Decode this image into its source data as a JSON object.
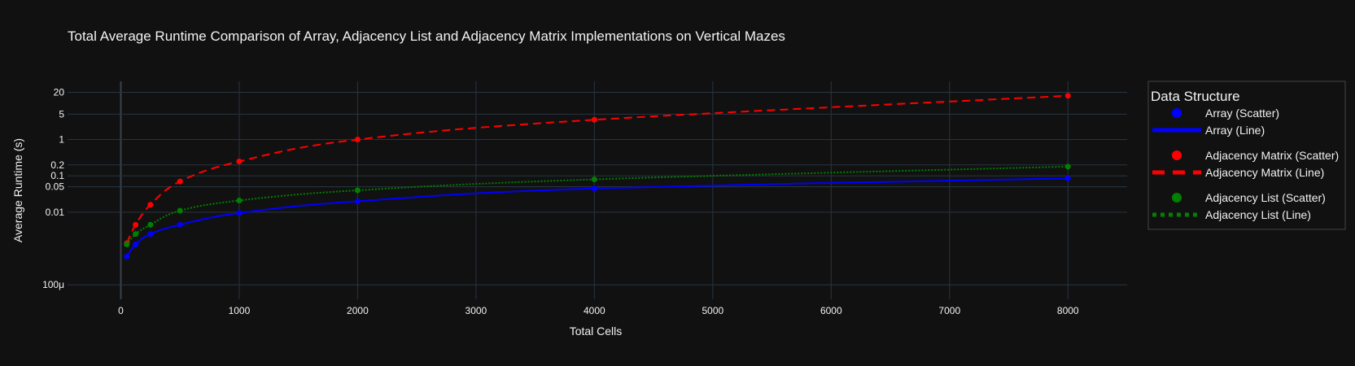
{
  "chart_data": {
    "type": "line",
    "title": "Total Average Runtime Comparison of Array, Adjacency List and Adjacency Matrix Implementations on Vertical Mazes",
    "xlabel": "Total Cells",
    "ylabel": "Average Runtime (s)",
    "x_scale": "linear",
    "y_scale": "log",
    "xlim": [
      -450,
      8500
    ],
    "ylim": [
      4e-05,
      40
    ],
    "x_ticks": [
      0,
      1000,
      2000,
      3000,
      4000,
      5000,
      6000,
      7000,
      8000
    ],
    "x_tick_labels": [
      "0",
      "1000",
      "2000",
      "3000",
      "4000",
      "5000",
      "6000",
      "7000",
      "8000"
    ],
    "y_ticks": [
      0.0001,
      0.01,
      0.05,
      0.1,
      0.2,
      1,
      5,
      20
    ],
    "y_tick_labels": [
      "100μ",
      "0.01",
      "0.05",
      "0.1",
      "0.2",
      "1",
      "5",
      "20"
    ],
    "grid": true,
    "legend_title": "Data Structure",
    "legend_position": "right",
    "series": [
      {
        "key": "array",
        "x": [
          50,
          125,
          250,
          500,
          1000,
          2000,
          4000,
          8000
        ],
        "y": [
          0.0006,
          0.0013,
          0.0025,
          0.0045,
          0.0095,
          0.02,
          0.045,
          0.085
        ],
        "color": "#0000ff",
        "dash": "solid",
        "scatter_label": "Array (Scatter)",
        "line_label": "Array (Line)"
      },
      {
        "key": "adjacency-matrix",
        "x": [
          50,
          125,
          250,
          500,
          1000,
          2000,
          4000,
          8000
        ],
        "y": [
          0.0014,
          0.0045,
          0.016,
          0.07,
          0.25,
          1.0,
          3.5,
          16
        ],
        "color": "#ff0000",
        "dash": "dash",
        "scatter_label": "Adjacency Matrix (Scatter)",
        "line_label": "Adjacency Matrix (Line)"
      },
      {
        "key": "adjacency-list",
        "x": [
          50,
          125,
          250,
          500,
          1000,
          2000,
          4000,
          8000
        ],
        "y": [
          0.0013,
          0.0025,
          0.0045,
          0.011,
          0.021,
          0.04,
          0.08,
          0.18
        ],
        "color": "#008000",
        "dash": "dot",
        "scatter_label": "Adjacency List (Scatter)",
        "line_label": "Adjacency List (Line)"
      }
    ]
  }
}
